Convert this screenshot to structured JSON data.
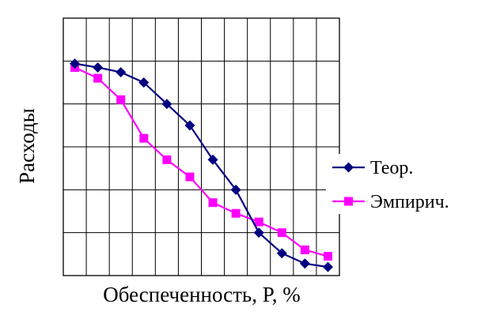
{
  "chart_data": {
    "type": "line",
    "title": "",
    "xlabel": "Обеспеченность, P, %",
    "ylabel": "Расходы",
    "grid": true,
    "legend_position": "right",
    "x_divisions": 12,
    "y_divisions": 6,
    "xlim": [
      0,
      12
    ],
    "ylim": [
      0,
      6
    ],
    "x": [
      0.5,
      1.5,
      2.5,
      3.5,
      4.5,
      5.5,
      6.5,
      7.5,
      8.5,
      9.5,
      10.5,
      11.5
    ],
    "series": [
      {
        "name": "Теор.",
        "color": "#000080",
        "marker": "diamond",
        "values": [
          4.94,
          4.85,
          4.74,
          4.5,
          4.0,
          3.5,
          2.7,
          2.0,
          1.0,
          0.52,
          0.28,
          0.2
        ]
      },
      {
        "name": "Эмпирич.",
        "color": "#FF00FF",
        "marker": "square",
        "values": [
          4.85,
          4.6,
          4.1,
          3.2,
          2.7,
          2.3,
          1.7,
          1.45,
          1.25,
          1.0,
          0.6,
          0.45
        ]
      }
    ]
  }
}
